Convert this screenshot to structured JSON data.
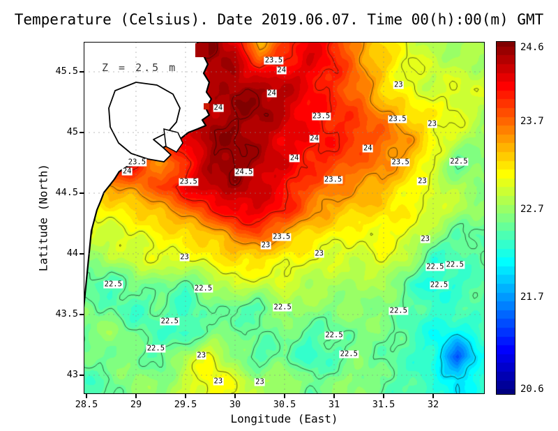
{
  "title": "Temperature (Celsius). Date 2019.06.07. Time 00(h):00(m) GMT",
  "annotation": "Z = 2.5 m",
  "axes": {
    "x": {
      "label": "Longitude (East)",
      "ticks": [
        {
          "label": "28.5",
          "value": 28.5
        },
        {
          "label": "29",
          "value": 29
        },
        {
          "label": "29.5",
          "value": 29.5
        },
        {
          "label": "30",
          "value": 30
        },
        {
          "label": "30.5",
          "value": 30.5
        },
        {
          "label": "31",
          "value": 31
        },
        {
          "label": "31.5",
          "value": 31.5
        },
        {
          "label": "32",
          "value": 32
        }
      ]
    },
    "y": {
      "label": "Latitude (North)",
      "ticks": [
        {
          "label": "45.5",
          "value": 45.5
        },
        {
          "label": "45",
          "value": 45
        },
        {
          "label": "44.5",
          "value": 44.5
        },
        {
          "label": "44",
          "value": 44
        },
        {
          "label": "43.5",
          "value": 43.5
        },
        {
          "label": "43",
          "value": 43
        }
      ]
    }
  },
  "colorbar": {
    "min": 20.6,
    "max": 24.6,
    "colormap": "jet",
    "ticks": [
      {
        "label": "24.6",
        "value": 24.6
      },
      {
        "label": "23.7",
        "value": 23.7
      },
      {
        "label": "22.7",
        "value": 22.7
      },
      {
        "label": "21.7",
        "value": 21.7
      },
      {
        "label": "20.6",
        "value": 20.6
      }
    ]
  },
  "chart_data": {
    "type": "heatmap",
    "title": "Temperature (Celsius). Date 2019.06.07. Time 00(h):00(m) GMT",
    "xlabel": "Longitude (East)",
    "ylabel": "Latitude (North)",
    "depth": "Z = 2.5 m",
    "lon_range": [
      28.47,
      32.52
    ],
    "lat_range": [
      42.85,
      45.75
    ],
    "colormap": "jet",
    "color_range": [
      20.6,
      24.6
    ],
    "contour_levels": [
      22,
      22.5,
      23,
      23.5,
      24,
      24.5
    ],
    "grid_lon": [
      28.5,
      28.75,
      29.0,
      29.25,
      29.5,
      29.75,
      30.0,
      30.25,
      30.5,
      30.75,
      31.0,
      31.25,
      31.5,
      31.75,
      32.0,
      32.25,
      32.5
    ],
    "grid_lat": [
      45.75,
      45.55,
      45.35,
      45.15,
      44.95,
      44.75,
      44.55,
      44.35,
      44.15,
      43.95,
      43.75,
      43.55,
      43.35,
      43.15,
      42.95
    ],
    "temperature": [
      [
        24.0,
        24.0,
        24.0,
        24.0,
        24.3,
        24.6,
        24.2,
        23.4,
        23.8,
        24.2,
        24.0,
        23.5,
        23.2,
        23.0,
        22.8,
        22.7,
        22.7
      ],
      [
        24.0,
        24.0,
        24.0,
        24.0,
        24.2,
        24.5,
        24.4,
        23.9,
        24.1,
        24.2,
        24.0,
        23.6,
        23.3,
        23.0,
        22.9,
        22.8,
        22.8
      ],
      [
        24.0,
        24.0,
        24.0,
        24.0,
        24.1,
        24.3,
        24.5,
        24.5,
        24.4,
        24.1,
        23.9,
        23.7,
        23.2,
        23.0,
        22.9,
        23.0,
        22.9
      ],
      [
        23.8,
        23.8,
        23.9,
        24.0,
        24.0,
        24.4,
        24.5,
        24.5,
        24.3,
        24.1,
        24.0,
        23.8,
        23.6,
        23.3,
        23.1,
        23.0,
        22.8
      ],
      [
        23.6,
        23.6,
        23.7,
        23.8,
        24.2,
        24.5,
        24.5,
        24.4,
        24.2,
        24.1,
        24.0,
        23.9,
        23.7,
        23.5,
        23.1,
        22.9,
        22.7
      ],
      [
        23.6,
        24.2,
        24.1,
        23.5,
        23.9,
        24.4,
        24.6,
        24.4,
        24.2,
        24.0,
        23.9,
        23.7,
        23.6,
        23.4,
        23.0,
        22.4,
        22.6
      ],
      [
        23.3,
        23.5,
        23.6,
        23.8,
        24.2,
        24.4,
        24.4,
        24.3,
        24.1,
        23.8,
        23.6,
        23.5,
        23.4,
        23.1,
        22.9,
        22.8,
        22.7
      ],
      [
        23.0,
        23.1,
        23.2,
        23.4,
        23.6,
        23.9,
        24.2,
        24.2,
        24.0,
        23.6,
        23.4,
        23.3,
        23.2,
        23.1,
        23.0,
        22.8,
        22.6
      ],
      [
        22.9,
        22.9,
        23.0,
        23.1,
        23.2,
        23.3,
        23.6,
        23.8,
        23.4,
        23.2,
        23.1,
        23.0,
        23.1,
        23.0,
        22.7,
        22.4,
        22.5
      ],
      [
        22.7,
        22.8,
        22.9,
        23.0,
        23.0,
        23.1,
        23.2,
        23.2,
        23.1,
        23.0,
        22.9,
        22.9,
        23.0,
        22.8,
        22.3,
        22.4,
        22.5
      ],
      [
        22.4,
        22.3,
        22.6,
        22.6,
        22.4,
        22.7,
        23.0,
        22.9,
        22.9,
        22.8,
        22.8,
        22.7,
        22.8,
        22.4,
        22.2,
        22.3,
        22.4
      ],
      [
        22.6,
        22.5,
        22.3,
        22.5,
        22.3,
        22.6,
        22.4,
        22.4,
        22.8,
        22.7,
        22.6,
        22.7,
        22.6,
        22.5,
        22.3,
        22.4,
        22.5
      ],
      [
        22.6,
        22.7,
        22.5,
        22.4,
        22.3,
        22.5,
        22.6,
        22.5,
        22.6,
        22.4,
        22.5,
        22.6,
        22.6,
        22.4,
        22.2,
        22.1,
        22.3
      ],
      [
        22.5,
        22.6,
        22.6,
        22.4,
        22.8,
        23.1,
        22.6,
        22.4,
        22.5,
        22.3,
        22.4,
        22.6,
        22.5,
        22.4,
        22.2,
        21.4,
        22.2
      ],
      [
        22.4,
        22.5,
        22.7,
        22.6,
        22.9,
        23.1,
        23.0,
        22.7,
        22.8,
        22.5,
        22.6,
        22.7,
        22.5,
        22.4,
        22.3,
        22.0,
        22.3
      ]
    ],
    "contour_labels": [
      {
        "text": "23.5",
        "lon": 30.39,
        "lat": 45.59
      },
      {
        "text": "24",
        "lon": 30.47,
        "lat": 45.51
      },
      {
        "text": "23",
        "lon": 31.65,
        "lat": 45.39
      },
      {
        "text": "24",
        "lon": 30.37,
        "lat": 45.32
      },
      {
        "text": "24",
        "lon": 29.83,
        "lat": 45.2
      },
      {
        "text": "23.5",
        "lon": 30.87,
        "lat": 45.13
      },
      {
        "text": "23.5",
        "lon": 31.64,
        "lat": 45.11
      },
      {
        "text": "23",
        "lon": 31.99,
        "lat": 45.07
      },
      {
        "text": "24",
        "lon": 30.8,
        "lat": 44.95
      },
      {
        "text": "24",
        "lon": 31.34,
        "lat": 44.87
      },
      {
        "text": "24",
        "lon": 30.6,
        "lat": 44.79
      },
      {
        "text": "22.5",
        "lon": 32.26,
        "lat": 44.76
      },
      {
        "text": "23.5",
        "lon": 29.01,
        "lat": 44.75
      },
      {
        "text": "24",
        "lon": 28.91,
        "lat": 44.68
      },
      {
        "text": "23.5",
        "lon": 31.67,
        "lat": 44.75
      },
      {
        "text": "23",
        "lon": 31.89,
        "lat": 44.6
      },
      {
        "text": "23.5",
        "lon": 29.53,
        "lat": 44.59
      },
      {
        "text": "24.5",
        "lon": 30.09,
        "lat": 44.67
      },
      {
        "text": "23.5",
        "lon": 30.99,
        "lat": 44.61
      },
      {
        "text": "23",
        "lon": 31.92,
        "lat": 44.12
      },
      {
        "text": "23.5",
        "lon": 30.47,
        "lat": 44.14
      },
      {
        "text": "23",
        "lon": 30.31,
        "lat": 44.07
      },
      {
        "text": "23",
        "lon": 30.85,
        "lat": 44.0
      },
      {
        "text": "23",
        "lon": 29.49,
        "lat": 43.97
      },
      {
        "text": "22.5",
        "lon": 32.22,
        "lat": 43.91
      },
      {
        "text": "22.5",
        "lon": 32.02,
        "lat": 43.89
      },
      {
        "text": "22.5",
        "lon": 28.77,
        "lat": 43.75
      },
      {
        "text": "22.5",
        "lon": 32.06,
        "lat": 43.74
      },
      {
        "text": "22.5",
        "lon": 29.68,
        "lat": 43.71
      },
      {
        "text": "22.5",
        "lon": 30.48,
        "lat": 43.56
      },
      {
        "text": "22.5",
        "lon": 31.65,
        "lat": 43.53
      },
      {
        "text": "22.5",
        "lon": 29.34,
        "lat": 43.44
      },
      {
        "text": "22.5",
        "lon": 31.0,
        "lat": 43.33
      },
      {
        "text": "22.5",
        "lon": 29.2,
        "lat": 43.22
      },
      {
        "text": "23",
        "lon": 29.66,
        "lat": 43.16
      },
      {
        "text": "22.5",
        "lon": 31.15,
        "lat": 43.17
      },
      {
        "text": "23",
        "lon": 29.83,
        "lat": 42.95
      },
      {
        "text": "23",
        "lon": 30.25,
        "lat": 42.94
      }
    ]
  }
}
